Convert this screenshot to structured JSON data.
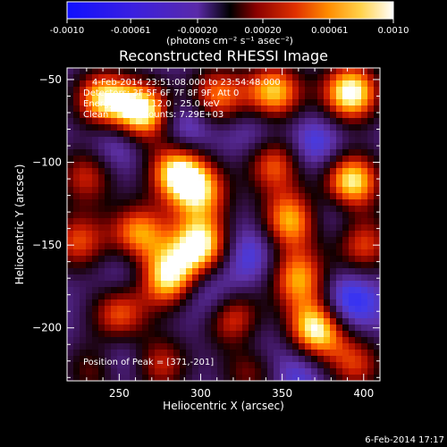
{
  "colorbar": {
    "tick_labels": [
      "-0.0010",
      "-0.00061",
      "-0.00020",
      "0.00020",
      "0.00061",
      "0.0010"
    ],
    "unit_label": "(photons cm⁻² s⁻¹ asec⁻²)",
    "range": [
      -0.001,
      0.001
    ],
    "colors": {
      "negative": [
        "#000000",
        "#0000ff",
        "#2020ff",
        "#7b2bd6"
      ],
      "positive": [
        "#000000",
        "#6b0000",
        "#c81400",
        "#ff5a00",
        "#ffb400",
        "#ffff80",
        "#ffffff"
      ]
    }
  },
  "chart_data": {
    "type": "heatmap",
    "title": "Reconstructed RHESSI Image",
    "xlabel": "Heliocentric X (arcsec)",
    "ylabel": "Heliocentric Y (arcsec)",
    "xlim": [
      218,
      410
    ],
    "ylim": [
      -232,
      -43
    ],
    "xticks": [
      250,
      300,
      350,
      400
    ],
    "yticks": [
      -50,
      -100,
      -150,
      -200
    ],
    "xtick_labels": [
      "250",
      "300",
      "350",
      "400"
    ],
    "ytick_labels": [
      "−50",
      "−100",
      "−150",
      "−200"
    ],
    "annotations": [
      "4-Feb-2014 23:51:08.000 to 23:54:48.000",
      "Detectors: 3F 5F 6F 7F 8F 9F, Att 0",
      "Energy Range: 12.0 - 25.0 keV",
      "Clean    Total counts: 7.29E+03"
    ],
    "peak_label": "Position of Peak = [371,-201]",
    "peak_position": [
      371,
      -201
    ],
    "blobs_positive": [
      [
        240,
        -62,
        0.85
      ],
      [
        265,
        -70,
        1.0
      ],
      [
        310,
        -60,
        0.7
      ],
      [
        345,
        -58,
        0.85
      ],
      [
        392,
        -58,
        1.0
      ],
      [
        230,
        -108,
        0.55
      ],
      [
        285,
        -105,
        0.85
      ],
      [
        300,
        -118,
        0.7
      ],
      [
        345,
        -100,
        0.7
      ],
      [
        392,
        -112,
        1.0
      ],
      [
        225,
        -148,
        0.6
      ],
      [
        262,
        -143,
        0.75
      ],
      [
        300,
        -150,
        0.95
      ],
      [
        355,
        -135,
        0.8
      ],
      [
        400,
        -150,
        0.6
      ],
      [
        280,
        -170,
        0.9
      ],
      [
        360,
        -170,
        0.75
      ],
      [
        250,
        -192,
        0.65
      ],
      [
        320,
        -195,
        0.7
      ],
      [
        371,
        -201,
        1.0
      ],
      [
        235,
        -225,
        0.45
      ],
      [
        275,
        -222,
        0.55
      ],
      [
        330,
        -225,
        0.5
      ],
      [
        395,
        -222,
        0.55
      ]
    ],
    "blobs_negative": [
      [
        290,
        -78,
        0.6
      ],
      [
        335,
        -82,
        0.45
      ],
      [
        370,
        -90,
        0.55
      ],
      [
        248,
        -88,
        0.5
      ],
      [
        330,
        -155,
        0.5
      ],
      [
        382,
        -128,
        0.45
      ],
      [
        255,
        -165,
        0.35
      ],
      [
        305,
        -180,
        0.55
      ],
      [
        250,
        -218,
        0.5
      ],
      [
        330,
        -210,
        0.45
      ],
      [
        390,
        -185,
        0.75
      ],
      [
        360,
        -225,
        0.45
      ]
    ]
  },
  "footer": {
    "date": "6-Feb-2014 17:17"
  }
}
